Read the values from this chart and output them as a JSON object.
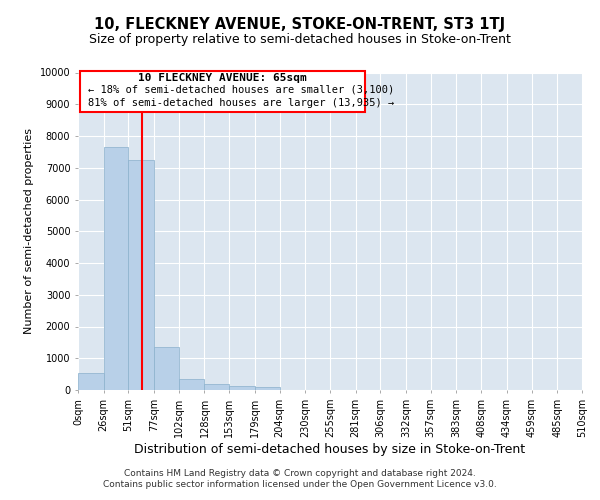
{
  "title": "10, FLECKNEY AVENUE, STOKE-ON-TRENT, ST3 1TJ",
  "subtitle": "Size of property relative to semi-detached houses in Stoke-on-Trent",
  "xlabel": "Distribution of semi-detached houses by size in Stoke-on-Trent",
  "ylabel": "Number of semi-detached properties",
  "bin_edges": [
    0,
    26,
    51,
    77,
    102,
    128,
    153,
    179,
    204,
    230,
    255,
    281,
    306,
    332,
    357,
    383,
    408,
    434,
    459,
    485,
    510
  ],
  "bar_heights": [
    550,
    7650,
    7250,
    1350,
    350,
    175,
    125,
    100,
    0,
    0,
    0,
    0,
    0,
    0,
    0,
    0,
    0,
    0,
    0,
    0
  ],
  "bar_color": "#b8d0e8",
  "bar_edgecolor": "#8ab0cc",
  "background_color": "#dce6f0",
  "grid_color": "#ffffff",
  "red_line_x": 65,
  "ylim": [
    0,
    10000
  ],
  "yticks": [
    0,
    1000,
    2000,
    3000,
    4000,
    5000,
    6000,
    7000,
    8000,
    9000,
    10000
  ],
  "annotation_title": "10 FLECKNEY AVENUE: 65sqm",
  "annotation_line2": "← 18% of semi-detached houses are smaller (3,100)",
  "annotation_line3": "81% of semi-detached houses are larger (13,935) →",
  "footer1": "Contains HM Land Registry data © Crown copyright and database right 2024.",
  "footer2": "Contains public sector information licensed under the Open Government Licence v3.0.",
  "title_fontsize": 10.5,
  "subtitle_fontsize": 9,
  "xlabel_fontsize": 9,
  "ylabel_fontsize": 8,
  "tick_fontsize": 7,
  "annotation_title_fontsize": 8,
  "annotation_text_fontsize": 7.5,
  "footer_fontsize": 6.5
}
